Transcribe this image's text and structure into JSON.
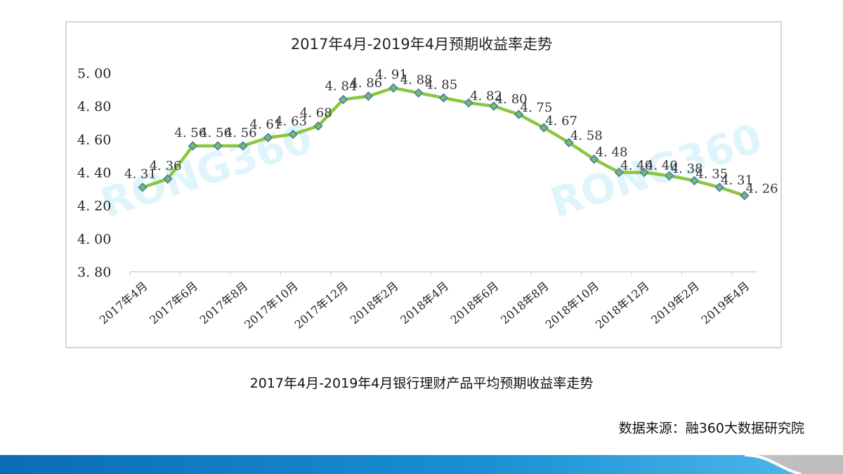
{
  "chart_data": {
    "type": "line",
    "title": "2017年4月-2019年4月预期收益率走势",
    "xlabel": "",
    "ylabel": "",
    "ylim": [
      3.8,
      5.0
    ],
    "yticks": [
      "5.00",
      "4.80",
      "4.60",
      "4.40",
      "4.20",
      "4.00",
      "3.80"
    ],
    "grid": false,
    "legend": null,
    "x": [
      "2017年4月",
      "2017年5月",
      "2017年6月",
      "2017年7月",
      "2017年8月",
      "2017年9月",
      "2017年10月",
      "2017年11月",
      "2017年12月",
      "2018年1月",
      "2018年2月",
      "2018年3月",
      "2018年4月",
      "2018年5月",
      "2018年6月",
      "2018年7月",
      "2018年8月",
      "2018年9月",
      "2018年10月",
      "2018年11月",
      "2018年12月",
      "2019年1月",
      "2019年2月",
      "2019年3月",
      "2019年4月"
    ],
    "xtick_labels": [
      "2017年4月",
      "2017年6月",
      "2017年8月",
      "2017年10月",
      "2017年12月",
      "2018年2月",
      "2018年4月",
      "2018年6月",
      "2018年8月",
      "2018年10月",
      "2018年12月",
      "2019年2月",
      "2019年4月"
    ],
    "series": [
      {
        "name": "预期收益率",
        "values": [
          4.31,
          4.36,
          4.56,
          4.56,
          4.56,
          4.61,
          4.63,
          4.68,
          4.84,
          4.86,
          4.91,
          4.88,
          4.85,
          4.82,
          4.8,
          4.75,
          4.67,
          4.58,
          4.48,
          4.4,
          4.4,
          4.38,
          4.35,
          4.31,
          4.26
        ],
        "labels": [
          "4.31",
          "4.36",
          "4.56",
          "4.56",
          "4.56",
          "4.61",
          "4.63",
          "4.68",
          "4.84",
          "4.86",
          "4.91",
          "4.88",
          "4.85",
          "4.82",
          "4.80",
          "4.75",
          "4.67",
          "4.58",
          "4.48",
          "4.40",
          "4.40",
          "4.38",
          "4.35",
          "4.31",
          "4.26"
        ],
        "line_color": "#8cc63f",
        "marker_fill": "#7cc04a",
        "marker_edge": "#4a7fc1",
        "marker": "diamond"
      }
    ],
    "watermark": "RONG360"
  },
  "caption": "2017年4月-2019年4月银行理财产品平均预期收益率走势",
  "source": "数据来源：融360大数据研究院",
  "colors": {
    "footer_blue_dark": "#0a6fb8",
    "footer_blue_light": "#3fb0e6",
    "footer_gray": "#c8c8c8",
    "watermark": "#dff4fb",
    "frame": "#d6d6d6"
  }
}
